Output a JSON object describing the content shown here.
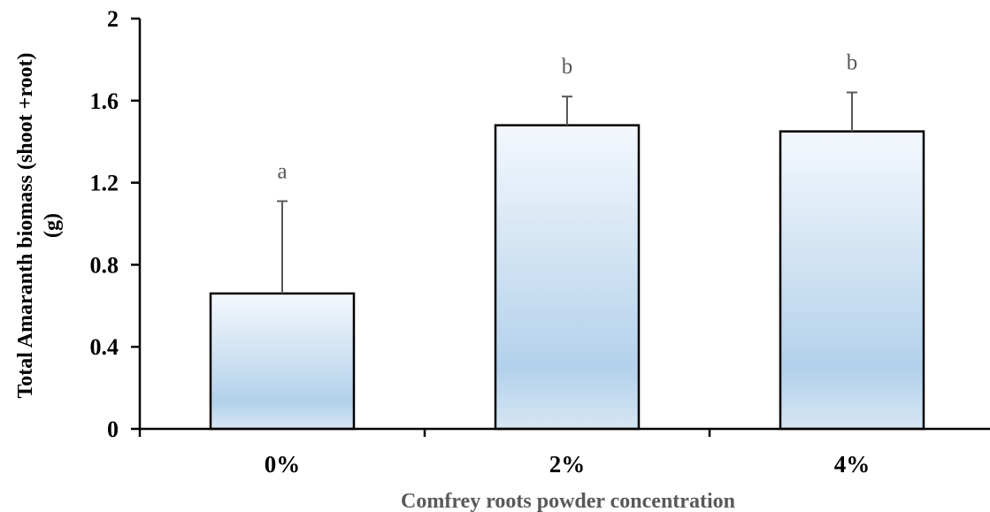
{
  "chart_data": {
    "type": "bar",
    "categories": [
      "0%",
      "2%",
      "4%"
    ],
    "values": [
      0.66,
      1.48,
      1.45
    ],
    "errors": [
      0.45,
      0.14,
      0.19
    ],
    "significance_labels": [
      "a",
      "b",
      "b"
    ],
    "ylabel_line1": "Total Amaranth biomass (shoot +root)",
    "ylabel_line2": "(g)",
    "xlabel": "Comfrey roots powder concentration",
    "ylim": [
      0,
      2
    ],
    "yticks": [
      0,
      0.4,
      0.8,
      1.2,
      1.6,
      2
    ],
    "ytick_labels": [
      "0",
      "0.4",
      "0.8",
      "1.2",
      "1.6",
      "2"
    ],
    "grid": false,
    "colors": {
      "bar_top": "#f4f8fd",
      "bar_mid": "#b3d1eb",
      "bar_bottom": "#d6e6f4",
      "bar_stroke": "#000000",
      "error_bar": "#595959",
      "axis": "#000000"
    }
  }
}
